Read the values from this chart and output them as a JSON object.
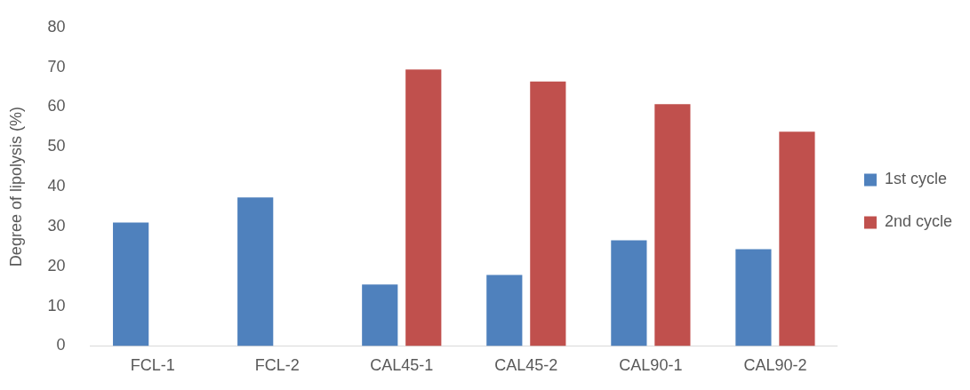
{
  "chart_data": {
    "type": "bar",
    "ylabel": "Degree of lipolysis (%)",
    "categories": [
      "FCL-1",
      "FCL-2",
      "CAL45-1",
      "CAL45-2",
      "CAL90-1",
      "CAL90-2"
    ],
    "series": [
      {
        "name": "1st cycle",
        "color": "#4f81bd",
        "values": [
          31.0,
          37.3,
          15.4,
          17.8,
          26.5,
          24.3
        ]
      },
      {
        "name": "2nd cycle",
        "color": "#c0504d",
        "values": [
          null,
          null,
          69.4,
          66.4,
          60.7,
          53.8
        ]
      }
    ],
    "ylim": [
      0,
      80
    ],
    "yticks": [
      0,
      10,
      20,
      30,
      40,
      50,
      60,
      70,
      80
    ],
    "grid": false,
    "legend": "right"
  }
}
